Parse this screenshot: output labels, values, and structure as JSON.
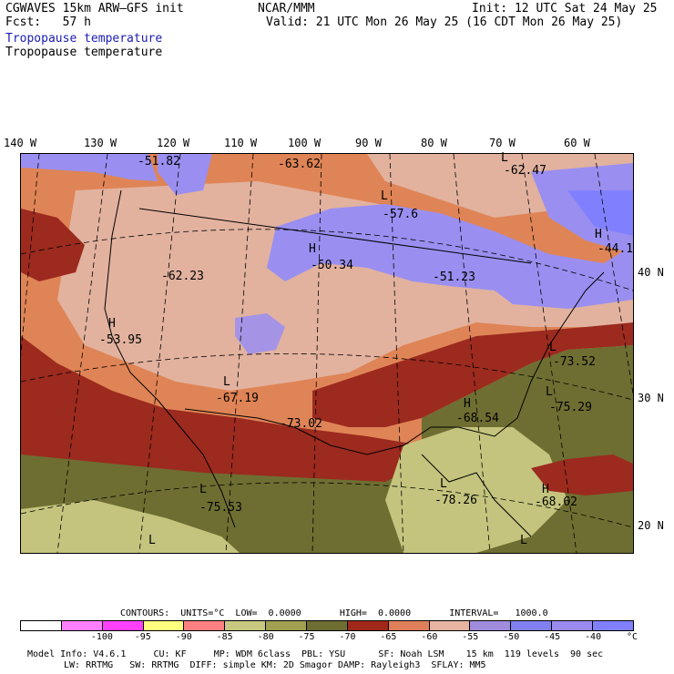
{
  "header": {
    "model": "CGWAVES 15km ARW–GFS init",
    "fcst_label": "Fcst:",
    "fcst_value": "57 h",
    "org": "NCAR/MMM",
    "init": "Init: 12 UTC Sat 24 May 25",
    "valid": "Valid: 21 UTC Mon 26 May 25 (16 CDT Mon 26 May 25)",
    "field_blue": "Tropopause temperature",
    "field_black": "Tropopause temperature"
  },
  "longitudes": [
    "140 W",
    "130 W",
    "120 W",
    "110 W",
    "100 W",
    "90 W",
    "80 W",
    "70 W",
    "60 W"
  ],
  "latitudes": [
    "40 N",
    "30 N",
    "20 N"
  ],
  "map_labels": [
    {
      "t": "-51.82"
    },
    {
      "t": "-63.62"
    },
    {
      "t": "L"
    },
    {
      "t": "-62.47"
    },
    {
      "t": "L"
    },
    {
      "t": "-57.6"
    },
    {
      "t": "H"
    },
    {
      "t": "-44.1"
    },
    {
      "t": "H"
    },
    {
      "t": "-50.34"
    },
    {
      "t": "-62.23"
    },
    {
      "t": "-51.23"
    },
    {
      "t": "H"
    },
    {
      "t": "-53.95"
    },
    {
      "t": "L"
    },
    {
      "t": "-73.52"
    },
    {
      "t": "L"
    },
    {
      "t": "-67.19"
    },
    {
      "t": "L"
    },
    {
      "t": "-75.29"
    },
    {
      "t": "H"
    },
    {
      "t": "-68.54"
    },
    {
      "t": "-73.02"
    },
    {
      "t": "L"
    },
    {
      "t": "-78.26"
    },
    {
      "t": "H"
    },
    {
      "t": "-68.62"
    },
    {
      "t": "L"
    },
    {
      "t": "-75.53"
    },
    {
      "t": "L"
    },
    {
      "t": "L"
    }
  ],
  "contours": {
    "text": "CONTOURS:  UNITS=°C  LOW=  0.0000       HIGH=  0.0000       INTERVAL=   1000.0"
  },
  "colorbar": {
    "colors": [
      "#ffffff",
      "#ff80ff",
      "#ff40ff",
      "#ffff80",
      "#ff8080",
      "#c8c880",
      "#a0a050",
      "#6e6e32",
      "#a02818",
      "#e0805a",
      "#e6b4a0",
      "#a08cdc",
      "#8080f0",
      "#9a8af0",
      "#8080ff"
    ],
    "ticks": [
      "-100",
      "-95",
      "-90",
      "-85",
      "-80",
      "-75",
      "-70",
      "-65",
      "-60",
      "-55",
      "-50",
      "-45",
      "-40"
    ],
    "unit": "°C"
  },
  "footer": {
    "line1": "Model Info: V4.6.1     CU: KF     MP: WDM 6class  PBL: YSU      SF: Noah LSM    15 km  119 levels  90 sec",
    "line2": "LW: RRTMG   SW: RRTMG  DIFF: simple KM: 2D Smagor DAMP: Rayleigh3  SFLAY: MM5"
  },
  "map_colors": {
    "blue": "#9a8ff0",
    "lilac": "#a594e6",
    "pink": "#e0b4a0",
    "orange": "#df8456",
    "red": "#9c2a1e",
    "olive": "#6e6e32",
    "khaki": "#c4c47e",
    "green": "#8a8a3c"
  }
}
